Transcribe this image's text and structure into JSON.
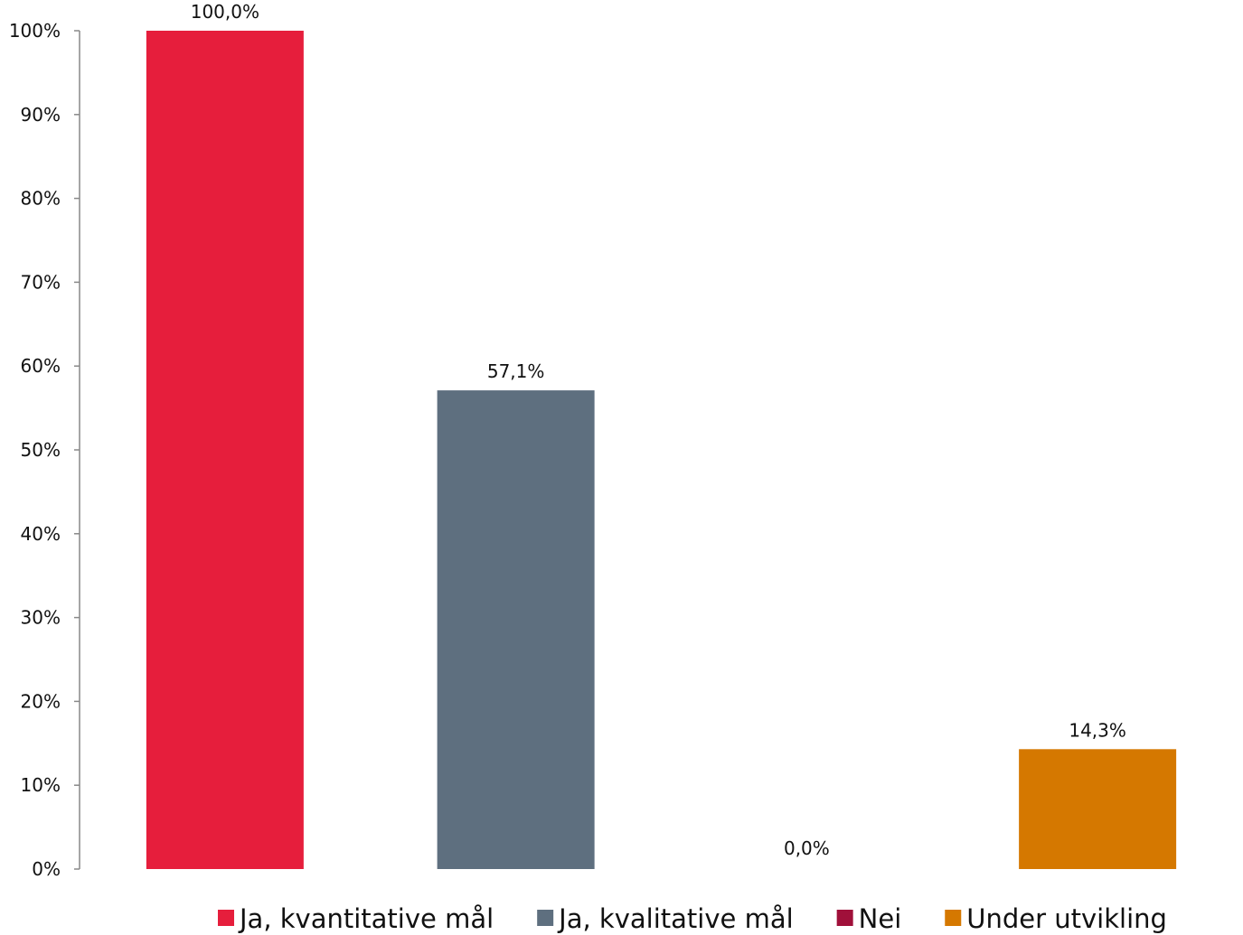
{
  "chart_data": {
    "type": "bar",
    "categories": [
      "Ja, kvantitative mål",
      "Ja, kvalitative mål",
      "Nei",
      "Under utvikling"
    ],
    "values": [
      100.0,
      57.1,
      0.0,
      14.3
    ],
    "data_labels": [
      "100,0%",
      "57,1%",
      "0,0%",
      "14,3%"
    ],
    "colors": [
      "#e61e3c",
      "#5e6f7f",
      "#a0103a",
      "#d57800"
    ],
    "ylim": [
      0,
      100
    ],
    "y_ticks": [
      {
        "value": 0,
        "label": "0%"
      },
      {
        "value": 10,
        "label": "10%"
      },
      {
        "value": 20,
        "label": "20%"
      },
      {
        "value": 30,
        "label": "30%"
      },
      {
        "value": 40,
        "label": "40%"
      },
      {
        "value": 50,
        "label": "50%"
      },
      {
        "value": 60,
        "label": "60%"
      },
      {
        "value": 70,
        "label": "70%"
      },
      {
        "value": 80,
        "label": "80%"
      },
      {
        "value": 90,
        "label": "90%"
      },
      {
        "value": 100,
        "label": "100%"
      }
    ],
    "title": "",
    "xlabel": "",
    "ylabel": "",
    "grid": false,
    "legend_position": "bottom"
  }
}
